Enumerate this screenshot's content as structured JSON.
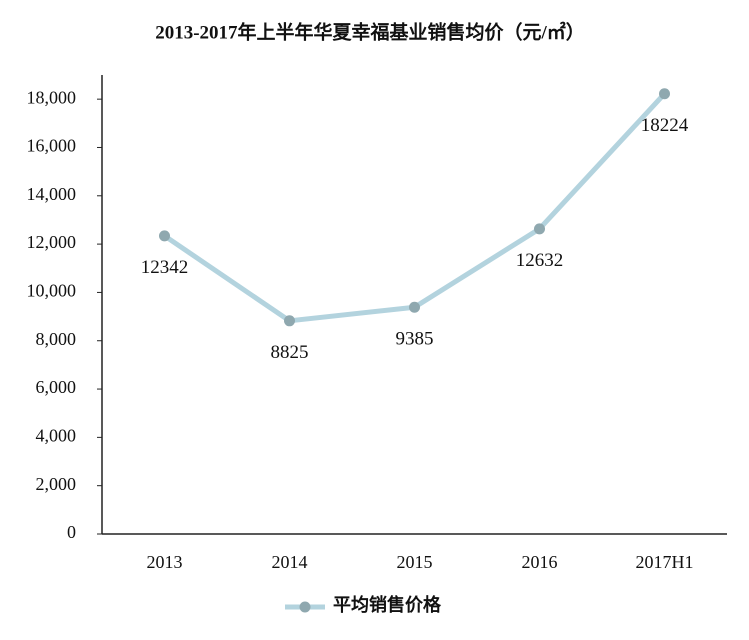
{
  "chart_data": {
    "type": "line",
    "title": "2013-2017年上半年华夏幸福基业销售均价（元/㎡）",
    "categories": [
      "2013",
      "2014",
      "2015",
      "2016",
      "2017H1"
    ],
    "series": [
      {
        "name": "平均销售价格",
        "color": "#b3d3de",
        "marker_color": "#8fa8af",
        "values": [
          12342,
          8825,
          9385,
          12632,
          18224
        ]
      }
    ],
    "ylim": [
      0,
      19000
    ],
    "yticks": [
      0,
      {
        "value": 2000,
        "label": "2,000"
      },
      {
        "value": 4000,
        "label": "4,000"
      },
      {
        "value": 6000,
        "label": "6,000"
      },
      {
        "value": 8000,
        "label": "8,000"
      },
      {
        "value": 10000,
        "label": "10,000"
      },
      {
        "value": 12000,
        "label": "12,000"
      },
      {
        "value": 14000,
        "label": "14,000"
      },
      {
        "value": 16000,
        "label": "16,000"
      },
      {
        "value": 18000,
        "label": "18,000"
      }
    ],
    "grid": false,
    "legend": "bottom"
  }
}
